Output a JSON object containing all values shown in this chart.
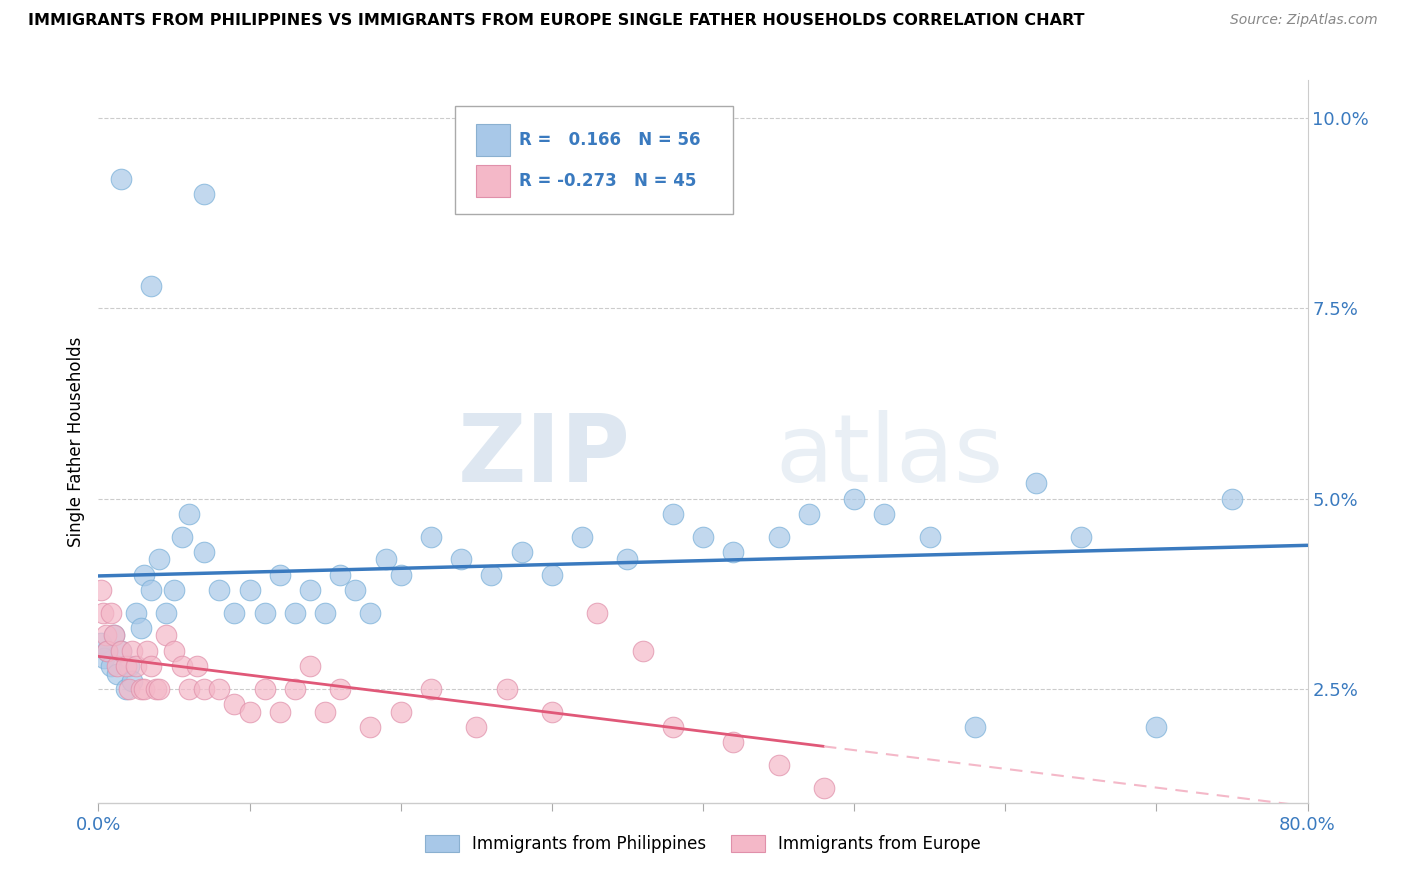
{
  "title": "IMMIGRANTS FROM PHILIPPINES VS IMMIGRANTS FROM EUROPE SINGLE FATHER HOUSEHOLDS CORRELATION CHART",
  "source": "Source: ZipAtlas.com",
  "ylabel": "Single Father Households",
  "legend_blue_r_val": "0.166",
  "legend_blue_n_val": "56",
  "legend_pink_r_val": "-0.273",
  "legend_pink_n_val": "45",
  "legend_blue_label": "Immigrants from Philippines",
  "legend_pink_label": "Immigrants from Europe",
  "blue_color": "#a8c8e8",
  "blue_line_color": "#3a7abf",
  "pink_color": "#f4b8c8",
  "pink_line_color": "#e05878",
  "pink_dash_color": "#f4b8c8",
  "watermark_zip": "ZIP",
  "watermark_atlas": "atlas",
  "blue_scatter_x": [
    1.5,
    3.5,
    7.0,
    0.2,
    0.4,
    0.6,
    0.8,
    1.0,
    1.2,
    1.5,
    1.8,
    2.0,
    2.2,
    2.5,
    2.8,
    3.0,
    3.5,
    4.0,
    4.5,
    5.0,
    5.5,
    6.0,
    7.0,
    8.0,
    9.0,
    10.0,
    11.0,
    12.0,
    13.0,
    14.0,
    15.0,
    16.0,
    17.0,
    18.0,
    19.0,
    20.0,
    22.0,
    24.0,
    26.0,
    28.0,
    30.0,
    32.0,
    35.0,
    38.0,
    40.0,
    42.0,
    45.0,
    47.0,
    50.0,
    52.0,
    55.0,
    58.0,
    62.0,
    65.0,
    70.0,
    75.0
  ],
  "blue_scatter_y": [
    9.2,
    7.8,
    9.0,
    3.1,
    2.9,
    3.0,
    2.8,
    3.2,
    2.7,
    3.0,
    2.5,
    2.8,
    2.6,
    3.5,
    3.3,
    4.0,
    3.8,
    4.2,
    3.5,
    3.8,
    4.5,
    4.8,
    4.3,
    3.8,
    3.5,
    3.8,
    3.5,
    4.0,
    3.5,
    3.8,
    3.5,
    4.0,
    3.8,
    3.5,
    4.2,
    4.0,
    4.5,
    4.2,
    4.0,
    4.3,
    4.0,
    4.5,
    4.2,
    4.8,
    4.5,
    4.3,
    4.5,
    4.8,
    5.0,
    4.8,
    4.5,
    2.0,
    5.2,
    4.5,
    2.0,
    5.0
  ],
  "pink_scatter_x": [
    0.2,
    0.3,
    0.5,
    0.6,
    0.8,
    1.0,
    1.2,
    1.5,
    1.8,
    2.0,
    2.2,
    2.5,
    2.8,
    3.0,
    3.2,
    3.5,
    3.8,
    4.0,
    4.5,
    5.0,
    5.5,
    6.0,
    6.5,
    7.0,
    8.0,
    9.0,
    10.0,
    11.0,
    12.0,
    13.0,
    14.0,
    15.0,
    16.0,
    18.0,
    20.0,
    22.0,
    25.0,
    27.0,
    30.0,
    33.0,
    36.0,
    38.0,
    42.0,
    45.0,
    48.0
  ],
  "pink_scatter_y": [
    3.8,
    3.5,
    3.2,
    3.0,
    3.5,
    3.2,
    2.8,
    3.0,
    2.8,
    2.5,
    3.0,
    2.8,
    2.5,
    2.5,
    3.0,
    2.8,
    2.5,
    2.5,
    3.2,
    3.0,
    2.8,
    2.5,
    2.8,
    2.5,
    2.5,
    2.3,
    2.2,
    2.5,
    2.2,
    2.5,
    2.8,
    2.2,
    2.5,
    2.0,
    2.2,
    2.5,
    2.0,
    2.5,
    2.2,
    3.5,
    3.0,
    2.0,
    1.8,
    1.5,
    1.2
  ],
  "xmin": 0.0,
  "xmax": 80.0,
  "ymin": 1.0,
  "ymax": 10.5,
  "yticks": [
    2.5,
    5.0,
    7.5,
    10.0
  ],
  "xticks_minor": [
    10.0,
    20.0,
    30.0,
    40.0,
    50.0,
    60.0,
    70.0
  ]
}
